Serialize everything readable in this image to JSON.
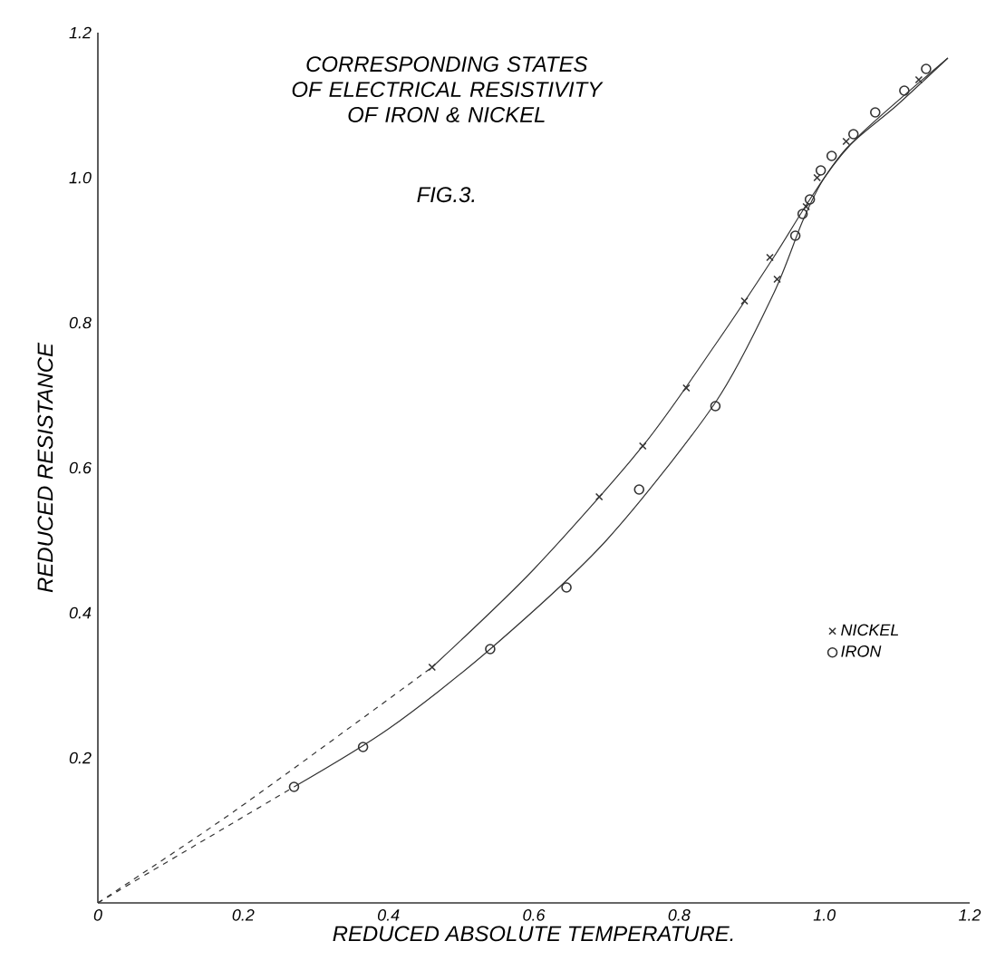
{
  "chart_data": {
    "type": "scatter",
    "title": "CORRESPONDING STATES OF ELECTRICAL RESISTIVITY OF IRON & NICKEL",
    "subtitle": "FIG.3.",
    "xlabel": "REDUCED ABSOLUTE TEMPERATURE.",
    "ylabel": "REDUCED RESISTANCE",
    "xlim": [
      0,
      1.2
    ],
    "ylim": [
      0,
      1.2
    ],
    "xticks": [
      0,
      0.2,
      0.4,
      0.6,
      0.8,
      {
        "value": 1,
        "label": "1.0"
      },
      1.2
    ],
    "yticks": [
      0.2,
      0.4,
      0.6,
      0.8,
      {
        "value": 1,
        "label": "1.0"
      },
      1.2
    ],
    "grid": false,
    "legend": "right",
    "series": [
      {
        "name": "NICKEL",
        "marker": "cross",
        "color": "#333333",
        "x": [
          0.46,
          0.69,
          0.75,
          0.81,
          0.89,
          0.925,
          0.935,
          0.975,
          0.99,
          1.03,
          1.13
        ],
        "values": [
          0.325,
          0.56,
          0.63,
          0.71,
          0.83,
          0.89,
          0.86,
          0.96,
          1.0,
          1.05,
          1.135
        ]
      },
      {
        "name": "IRON",
        "marker": "circle",
        "color": "#333333",
        "x": [
          0.27,
          0.365,
          0.54,
          0.645,
          0.745,
          0.85,
          0.96,
          0.97,
          0.98,
          0.995,
          1.01,
          1.04,
          1.07,
          1.11,
          1.14
        ],
        "values": [
          0.16,
          0.215,
          0.35,
          0.435,
          0.57,
          0.685,
          0.92,
          0.95,
          0.97,
          1.01,
          1.03,
          1.06,
          1.09,
          1.12,
          1.15
        ]
      },
      {
        "type": "line",
        "line_style": "solid",
        "color": "#333333",
        "x": [
          0.46,
          0.6,
          0.75,
          0.85,
          0.93,
          0.98,
          1.03,
          1.1,
          1.17
        ],
        "values": [
          0.325,
          0.46,
          0.63,
          0.77,
          0.89,
          0.97,
          1.04,
          1.1,
          1.165
        ]
      },
      {
        "type": "line",
        "line_style": "dashed",
        "color": "#333333",
        "x": [
          0,
          0.19,
          0.46
        ],
        "values": [
          0,
          0.128,
          0.325
        ]
      },
      {
        "type": "line",
        "line_style": "solid",
        "color": "#333333",
        "x": [
          0.27,
          0.4,
          0.54,
          0.7,
          0.85,
          0.93,
          0.97,
          1.0,
          1.05,
          1.17
        ],
        "values": [
          0.16,
          0.24,
          0.35,
          0.5,
          0.69,
          0.84,
          0.94,
          1.0,
          1.06,
          1.165
        ]
      },
      {
        "type": "line",
        "line_style": "dashed",
        "color": "#333333",
        "x": [
          0,
          0.27
        ],
        "values": [
          0,
          0.16
        ]
      }
    ]
  }
}
